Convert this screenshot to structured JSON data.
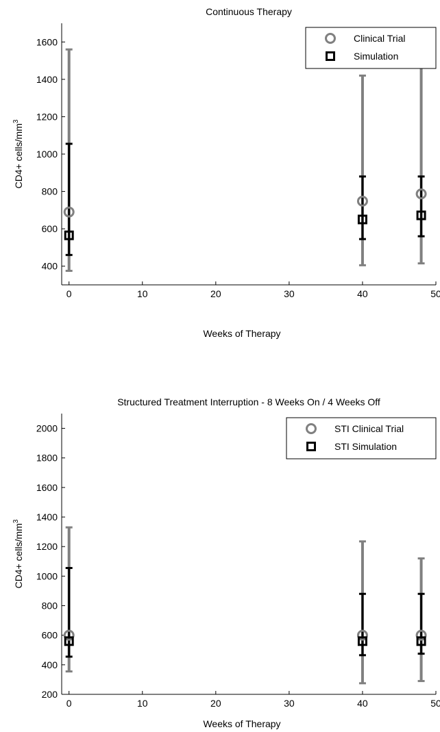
{
  "chart_data": [
    {
      "type": "scatter",
      "title": "Continuous Therapy",
      "xlabel": "Weeks of Therapy",
      "ylabel_main": "CD4+ cells/mm",
      "ylabel_sup": "3",
      "xlim": [
        -1,
        50
      ],
      "ylim": [
        300,
        1700
      ],
      "xticks": [
        0,
        10,
        20,
        30,
        40,
        50
      ],
      "yticks": [
        400,
        600,
        800,
        1000,
        1200,
        1400,
        1600
      ],
      "grid": false,
      "legend_position": "top-right",
      "series": [
        {
          "name": "Clinical Trial",
          "marker": "circle",
          "color": "#808080",
          "x": [
            0,
            40,
            48
          ],
          "y": [
            690,
            748,
            787
          ],
          "err_low": [
            375,
            405,
            415
          ],
          "err_high": [
            1560,
            1420,
            1465
          ]
        },
        {
          "name": "Simulation",
          "marker": "square",
          "color": "#000000",
          "x": [
            0,
            40,
            48
          ],
          "y": [
            565,
            650,
            672
          ],
          "err_low": [
            460,
            545,
            560
          ],
          "err_high": [
            1055,
            880,
            880
          ]
        }
      ]
    },
    {
      "type": "scatter",
      "title": "Structured Treatment Interruption - 8 Weeks On / 4 Weeks Off",
      "xlabel": "Weeks of Therapy",
      "ylabel_main": "CD4+ cells/mm",
      "ylabel_sup": "3",
      "xlim": [
        -1,
        50
      ],
      "ylim": [
        200,
        2100
      ],
      "xticks": [
        0,
        10,
        20,
        30,
        40,
        50
      ],
      "yticks": [
        200,
        400,
        600,
        800,
        1000,
        1200,
        1400,
        1600,
        1800,
        2000
      ],
      "grid": false,
      "legend_position": "top-right",
      "series": [
        {
          "name": "STI Clinical Trial",
          "marker": "circle",
          "color": "#808080",
          "x": [
            0,
            40,
            48
          ],
          "y": [
            600,
            600,
            600
          ],
          "err_low": [
            355,
            275,
            290
          ],
          "err_high": [
            1330,
            1235,
            1120
          ]
        },
        {
          "name": "STI Simulation",
          "marker": "square",
          "color": "#000000",
          "x": [
            0,
            40,
            48
          ],
          "y": [
            560,
            560,
            560
          ],
          "err_low": [
            455,
            465,
            475
          ],
          "err_high": [
            1055,
            880,
            880
          ]
        }
      ]
    }
  ]
}
